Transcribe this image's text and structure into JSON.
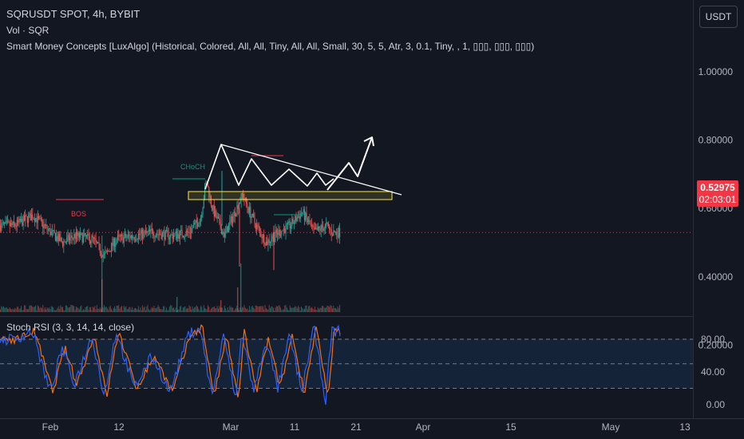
{
  "header": {
    "title": "SQRUSDT SPOT, 4h, BYBIT",
    "vol_label": "Vol · SQR",
    "smc_label": "Smart Money Concepts [LuxAlgo] (Historical, Colored, All, All, Tiny, All, All, Small, 30, 5, 5, Atr, 3, 0.1, Tiny, , 1, ▯▯▯, ▯▯▯, ▯▯▯)",
    "currency_button": "USDT"
  },
  "price_badge": {
    "price": "0.52975",
    "countdown": "02:03:01"
  },
  "price_axis": {
    "ticks": [
      "1.00000",
      "0.80000",
      "0.60000",
      "0.40000",
      "0.20000"
    ]
  },
  "rsi_panel": {
    "label": "Stoch RSI (3, 3, 14, 14, close)",
    "ticks": [
      "80.00",
      "40.00",
      "0.00"
    ]
  },
  "time_axis": {
    "ticks": [
      "Feb",
      "12",
      "Mar",
      "11",
      "21",
      "Apr",
      "15",
      "May",
      "13"
    ]
  },
  "annotations": {
    "choch": "CHoCH",
    "bos": "BOS"
  },
  "colors": {
    "background": "#131722",
    "up": "#26a69a",
    "down": "#ef5350",
    "stoch_k": "#2962ff",
    "stoch_d": "#ff6d00",
    "choch": "#089981",
    "bos": "#f23645",
    "zone": "#ffeb3b",
    "drawing": "#ffffff"
  },
  "chart_data": {
    "type": "candlestick",
    "title": "SQRUSDT SPOT, 4h, BYBIT",
    "x_ticks": [
      "Feb",
      "12",
      "Mar",
      "11",
      "21",
      "Apr",
      "15",
      "May",
      "13"
    ],
    "y_ticks": [
      1.0,
      0.8,
      0.6,
      0.4,
      0.2
    ],
    "ylim": [
      0.0,
      1.13
    ],
    "last_price": 0.52975,
    "close_path": [
      {
        "x": "Jan 26",
        "y": 0.55
      },
      {
        "x": "Jan 29",
        "y": 0.58
      },
      {
        "x": "Feb 1",
        "y": 0.53
      },
      {
        "x": "Feb 3",
        "y": 0.5
      },
      {
        "x": "Feb 5",
        "y": 0.52
      },
      {
        "x": "Feb 8",
        "y": 0.51
      },
      {
        "x": "Feb 10",
        "y": 0.46
      },
      {
        "x": "Feb 12",
        "y": 0.51
      },
      {
        "x": "Feb 15",
        "y": 0.52
      },
      {
        "x": "Feb 18",
        "y": 0.53
      },
      {
        "x": "Feb 21",
        "y": 0.52
      },
      {
        "x": "Feb 24",
        "y": 0.53
      },
      {
        "x": "Feb 26",
        "y": 0.57
      },
      {
        "x": "Feb 27",
        "y": 0.68
      },
      {
        "x": "Feb 28",
        "y": 0.6
      },
      {
        "x": "Mar 1",
        "y": 0.52
      },
      {
        "x": "Mar 3",
        "y": 0.6
      },
      {
        "x": "Mar 4",
        "y": 0.64
      },
      {
        "x": "Mar 6",
        "y": 0.56
      },
      {
        "x": "Mar 8",
        "y": 0.5
      },
      {
        "x": "Mar 10",
        "y": 0.53
      },
      {
        "x": "Mar 12",
        "y": 0.55
      },
      {
        "x": "Mar 14",
        "y": 0.59
      },
      {
        "x": "Mar 16",
        "y": 0.53
      },
      {
        "x": "Mar 18",
        "y": 0.55
      },
      {
        "x": "Mar 19",
        "y": 0.53
      }
    ],
    "stoch_k": [
      {
        "x": "Jan 26",
        "y": 80
      },
      {
        "x": "Jan 29",
        "y": 90
      },
      {
        "x": "Feb 1",
        "y": 15
      },
      {
        "x": "Feb 3",
        "y": 70
      },
      {
        "x": "Feb 5",
        "y": 25
      },
      {
        "x": "Feb 8",
        "y": 85
      },
      {
        "x": "Feb 10",
        "y": 10
      },
      {
        "x": "Feb 12",
        "y": 90
      },
      {
        "x": "Feb 15",
        "y": 20
      },
      {
        "x": "Feb 18",
        "y": 60
      },
      {
        "x": "Feb 21",
        "y": 15
      },
      {
        "x": "Feb 24",
        "y": 85
      },
      {
        "x": "Feb 26",
        "y": 95
      },
      {
        "x": "Feb 28",
        "y": 10
      },
      {
        "x": "Mar 1",
        "y": 85
      },
      {
        "x": "Mar 3",
        "y": 5
      },
      {
        "x": "Mar 4",
        "y": 90
      },
      {
        "x": "Mar 6",
        "y": 15
      },
      {
        "x": "Mar 8",
        "y": 80
      },
      {
        "x": "Mar 10",
        "y": 20
      },
      {
        "x": "Mar 12",
        "y": 85
      },
      {
        "x": "Mar 14",
        "y": 15
      },
      {
        "x": "Mar 16",
        "y": 95
      },
      {
        "x": "Mar 18",
        "y": 5
      },
      {
        "x": "Mar 19",
        "y": 90
      }
    ]
  }
}
